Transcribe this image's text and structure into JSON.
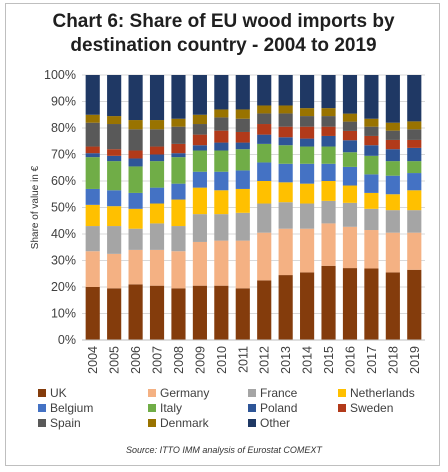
{
  "chart_data": {
    "type": "bar",
    "stacked": true,
    "title_line1": "Chart 6: Share of EU wood imports by",
    "title_line2": "destination country - 2004 to 2019",
    "ylabel": "Share of value in €",
    "xlabel": "",
    "ylim": [
      0,
      100
    ],
    "yticks": [
      "0%",
      "10%",
      "20%",
      "30%",
      "40%",
      "50%",
      "60%",
      "70%",
      "80%",
      "90%",
      "100%"
    ],
    "categories": [
      "2004",
      "2005",
      "2006",
      "2007",
      "2008",
      "2009",
      "2010",
      "2011",
      "2012",
      "2013",
      "2014",
      "2015",
      "2016",
      "2017",
      "2018",
      "2019"
    ],
    "grid": true,
    "legend_position": "bottom",
    "series": [
      {
        "name": "UK",
        "color": "#843c0c",
        "values": [
          20,
          19.5,
          21,
          20.5,
          19.5,
          20.5,
          20.5,
          19.5,
          22.5,
          24.5,
          25.5,
          28,
          27,
          27,
          25.5,
          26.5
        ]
      },
      {
        "name": "Germany",
        "color": "#f4b183",
        "values": [
          13.5,
          13,
          13,
          13.5,
          14,
          16.5,
          17,
          18,
          18,
          17.5,
          16.5,
          16,
          15.5,
          14.5,
          15,
          14
        ]
      },
      {
        "name": "France",
        "color": "#a5a5a5",
        "values": [
          9.5,
          10.5,
          8,
          10,
          9.5,
          10.5,
          10,
          10.5,
          11,
          10,
          9.5,
          8.5,
          9,
          8,
          8.5,
          8.5
        ]
      },
      {
        "name": "Netherlands",
        "color": "#ffc000",
        "values": [
          8,
          7.5,
          7.5,
          7.5,
          10,
          10,
          9,
          9,
          8.5,
          7.5,
          7.5,
          7.5,
          6.5,
          6,
          6,
          7.5
        ]
      },
      {
        "name": "Belgium",
        "color": "#4472c4",
        "values": [
          6,
          6,
          6,
          6,
          6,
          6,
          7,
          7,
          7,
          7,
          7.5,
          6.5,
          7,
          7,
          7,
          6.5
        ]
      },
      {
        "name": "Italy",
        "color": "#70ad47",
        "values": [
          12,
          11,
          10,
          10,
          10,
          8,
          8,
          8,
          7,
          7,
          6.5,
          6.5,
          5.5,
          7,
          5.5,
          4.5
        ]
      },
      {
        "name": "Poland",
        "color": "#2e5597",
        "values": [
          1.5,
          2,
          3,
          2.5,
          1.5,
          2,
          3,
          2.5,
          3.5,
          3,
          3,
          4,
          4.5,
          4,
          4.5,
          5
        ]
      },
      {
        "name": "Sweden",
        "color": "#b23a1a",
        "values": [
          2.5,
          2.5,
          3,
          3,
          3.5,
          4,
          4.5,
          4,
          4,
          4,
          4.5,
          3.5,
          3.5,
          3.5,
          3.5,
          3
        ]
      },
      {
        "name": "Spain",
        "color": "#595959",
        "values": [
          9,
          9.5,
          8,
          6.5,
          6.5,
          4,
          5,
          5,
          4,
          5,
          4,
          4,
          3.5,
          3.5,
          3.5,
          4
        ]
      },
      {
        "name": "Denmark",
        "color": "#997300",
        "values": [
          3,
          3,
          3.5,
          3.5,
          3,
          3.5,
          3,
          3.5,
          3,
          3,
          3,
          3,
          3,
          3,
          3,
          3
        ]
      },
      {
        "name": "Other",
        "color": "#1f3864",
        "values": [
          15,
          15.5,
          17,
          17,
          16.5,
          15,
          13,
          13,
          11.5,
          11.5,
          12.5,
          12.5,
          14.5,
          16.5,
          18,
          17.5
        ]
      }
    ]
  },
  "source": "Source: ITTO IMM analysis of Eurostat COMEXT"
}
